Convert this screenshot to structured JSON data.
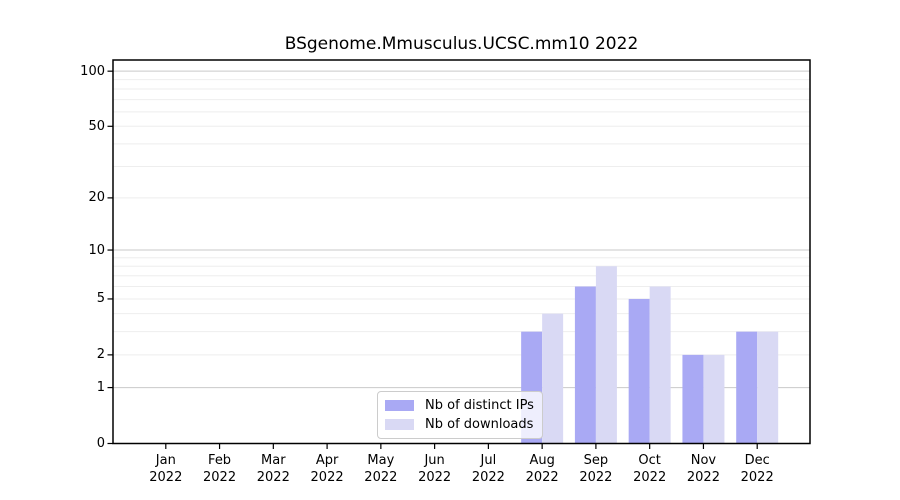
{
  "chart_data": {
    "type": "bar",
    "title": "BSgenome.Mmusculus.UCSC.mm10 2022",
    "categories": [
      "Jan",
      "Feb",
      "Mar",
      "Apr",
      "May",
      "Jun",
      "Jul",
      "Aug",
      "Sep",
      "Oct",
      "Nov",
      "Dec"
    ],
    "x_tick_year": "2022",
    "series": [
      {
        "name": "Nb of distinct IPs",
        "color": "#a9a9f4",
        "values": [
          0,
          0,
          0,
          0,
          0,
          0,
          0,
          3,
          6,
          5,
          2,
          3
        ]
      },
      {
        "name": "Nb of downloads",
        "color": "#d9d9f4",
        "values": [
          0,
          0,
          0,
          0,
          0,
          0,
          0,
          4,
          8,
          6,
          2,
          3
        ]
      }
    ],
    "xlabel": "",
    "ylabel": "",
    "scale": "log1p",
    "ylim": [
      0,
      115
    ],
    "yticks": [
      0,
      1,
      2,
      5,
      10,
      20,
      50,
      100
    ],
    "decade_gridlines": [
      1,
      10,
      100
    ],
    "minor_gridlines": [
      2,
      3,
      4,
      5,
      6,
      7,
      8,
      9,
      20,
      30,
      40,
      50,
      60,
      70,
      80,
      90
    ],
    "grid": "horizontal",
    "legend_position": "inside-bottom-center",
    "colors": {
      "decade_grid": "#c9c9c9",
      "minor_grid": "#eeeeee",
      "axis": "#000000",
      "background": "#ffffff"
    }
  }
}
